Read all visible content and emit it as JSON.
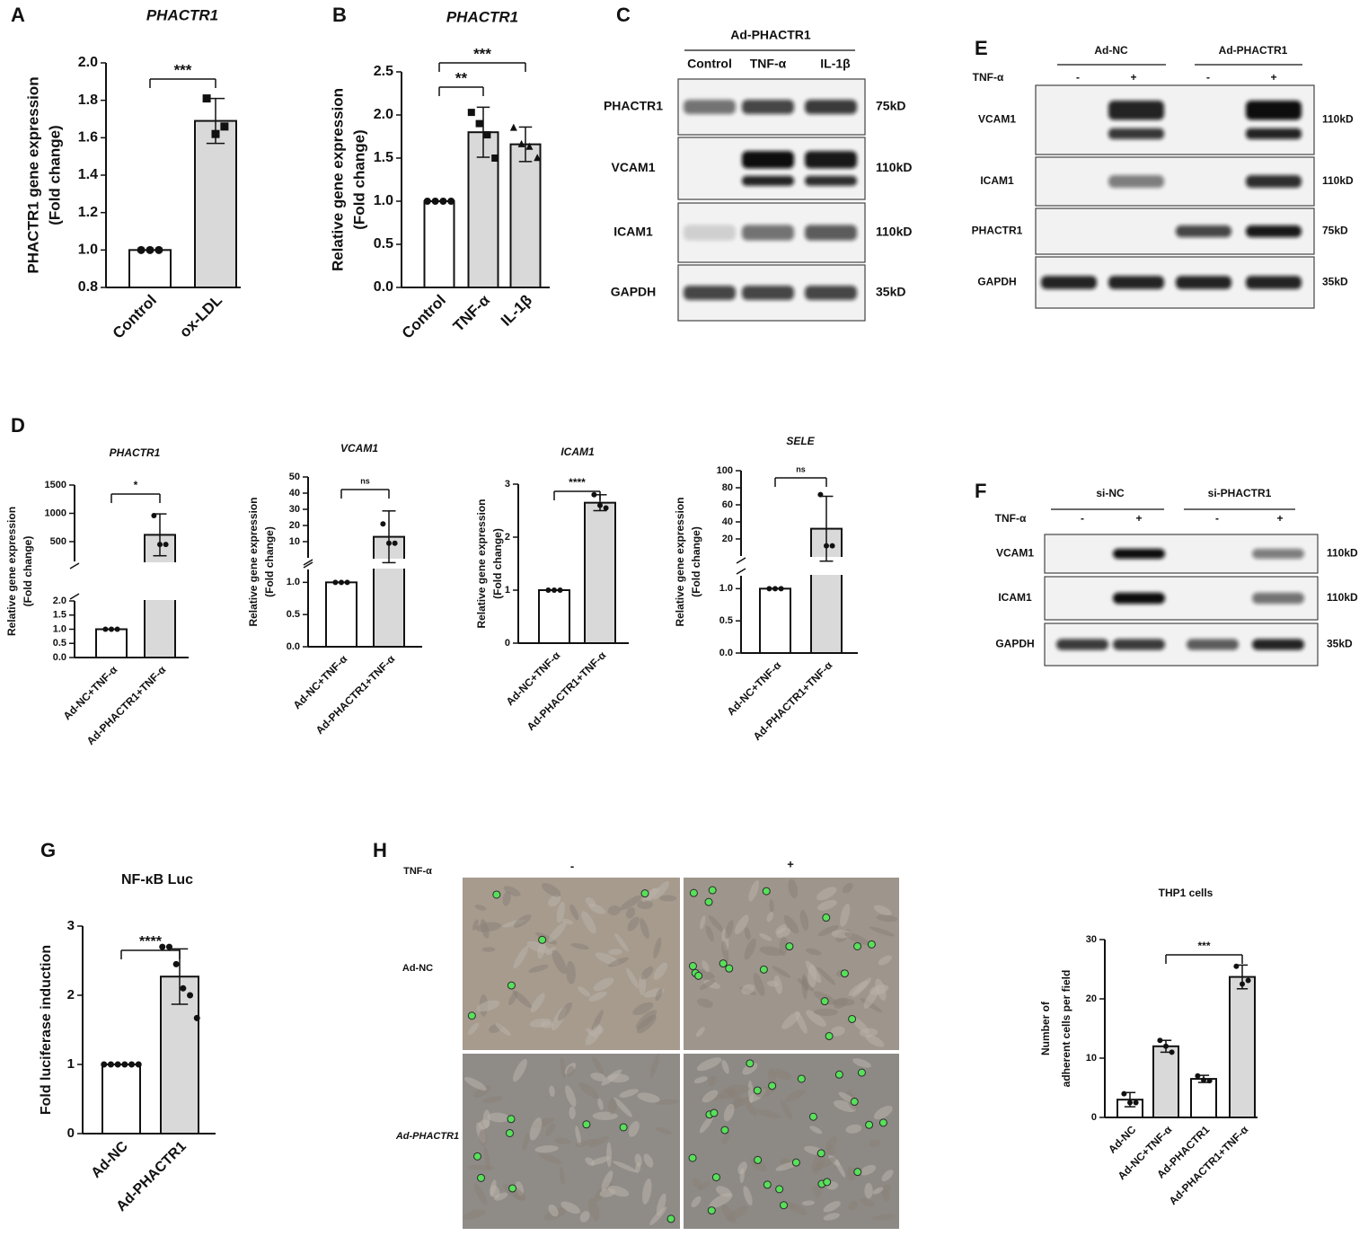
{
  "chart_data": [
    {
      "type": "bar",
      "panel": "A",
      "title": "PHACTR1",
      "title_italic": true,
      "ylabel": [
        "PHACTR1 gene expression",
        "(Fold change)"
      ],
      "categories": [
        "Control",
        "ox-LDL"
      ],
      "values": [
        1.0,
        1.69
      ],
      "errors": [
        0,
        0.12
      ],
      "points": [
        [
          1,
          1,
          1
        ],
        [
          1.81,
          1.62,
          1.66
        ]
      ],
      "markers": [
        "circle",
        "square"
      ],
      "colors": [
        "#ffffff",
        "#d9d9d9"
      ],
      "ylim": [
        0.8,
        2.0
      ],
      "yticks": [
        0.8,
        {
          "value": 1,
          "label": "1.0"
        },
        1.2,
        1.4,
        1.6,
        1.8,
        {
          "value": 2,
          "label": "2.0"
        }
      ],
      "significance": [
        {
          "label": "***",
          "groups": [
            "Control",
            "ox-LDL"
          ]
        }
      ]
    },
    {
      "type": "bar",
      "panel": "B",
      "title": "PHACTR1",
      "title_italic": true,
      "ylabel": [
        "Relative gene expression",
        "(Fold change)"
      ],
      "categories": [
        "Control",
        "TNF-α",
        "IL-1β"
      ],
      "values": [
        1.0,
        1.8,
        1.66
      ],
      "errors": [
        0,
        0.29,
        0.2
      ],
      "points": [
        [
          1,
          1,
          1,
          1
        ],
        [
          2.03,
          1.9,
          1.77,
          1.5
        ],
        [
          1.85,
          1.66,
          1.63,
          1.5
        ]
      ],
      "markers": [
        "circle",
        "square",
        "triangle"
      ],
      "colors": [
        "#ffffff",
        "#d9d9d9",
        "#d9d9d9"
      ],
      "ylim": [
        0,
        2.5
      ],
      "yticks": [
        {
          "value": 0,
          "label": "0.0"
        },
        0.5,
        {
          "value": 1,
          "label": "1.0"
        },
        1.5,
        {
          "value": 2,
          "label": "2.0"
        },
        2.5
      ],
      "significance": [
        {
          "label": "**",
          "groups": [
            "Control",
            "TNF-α"
          ]
        },
        {
          "label": "***",
          "groups": [
            "Control",
            "IL-1β"
          ]
        }
      ]
    },
    {
      "type": "bar",
      "panel": "D",
      "title": "PHACTR1",
      "title_italic": true,
      "ylabel": [
        "Relative gene expression",
        "(Fold change)"
      ],
      "categories": [
        "Ad-NC+TNF-α",
        "Ad-PHACTR1+TNF-α"
      ],
      "values": [
        1.0,
        620
      ],
      "errors": [
        0,
        370
      ],
      "points": [
        [
          1,
          1,
          1
        ],
        [
          960,
          450,
          450
        ]
      ],
      "colors": [
        "#ffffff",
        "#d9d9d9"
      ],
      "ylim": [
        0,
        1500
      ],
      "ybreak": [
        2,
        150
      ],
      "yticks": [
        {
          "value": 0,
          "label": "0.0"
        },
        0.5,
        {
          "value": 1,
          "label": "1.0"
        },
        1.5,
        {
          "value": 2,
          "label": "2.0"
        },
        500,
        1000,
        1500
      ],
      "significance": [
        {
          "label": "*",
          "groups": [
            "Ad-NC+TNF-α",
            "Ad-PHACTR1+TNF-α"
          ]
        }
      ]
    },
    {
      "type": "bar",
      "title": "VCAM1",
      "title_italic": true,
      "ylabel": [
        "Relative gene expression",
        "(Fold change)"
      ],
      "categories": [
        "Ad-NC+TNF-α",
        "Ad-PHACTR1+TNF-α"
      ],
      "values": [
        1.0,
        13
      ],
      "errors": [
        0,
        16
      ],
      "points": [
        [
          1,
          1,
          1
        ],
        [
          21,
          9,
          9
        ]
      ],
      "colors": [
        "#ffffff",
        "#d9d9d9"
      ],
      "ylim": [
        0,
        50
      ],
      "ybreak": [
        1.2,
        0
      ],
      "yticks": [
        {
          "value": 0,
          "label": "0.0"
        },
        0.5,
        {
          "value": 1,
          "label": "1.0"
        },
        10,
        20,
        30,
        40,
        50
      ],
      "significance": [
        {
          "label": "ns",
          "groups": [
            "Ad-NC+TNF-α",
            "Ad-PHACTR1+TNF-α"
          ]
        }
      ]
    },
    {
      "type": "bar",
      "title": "ICAM1",
      "title_italic": true,
      "ylabel": [
        "Relative gene expression",
        "(Fold change)"
      ],
      "categories": [
        "Ad-NC+TNF-α",
        "Ad-PHACTR1+TNF-α"
      ],
      "values": [
        1.0,
        2.65
      ],
      "errors": [
        0,
        0.15
      ],
      "points": [
        [
          1,
          1,
          1
        ],
        [
          2.8,
          2.6,
          2.55
        ]
      ],
      "colors": [
        "#ffffff",
        "#d9d9d9"
      ],
      "ylim": [
        0,
        3
      ],
      "yticks": [
        0,
        1,
        2,
        3
      ],
      "significance": [
        {
          "label": "****",
          "groups": [
            "Ad-NC+TNF-α",
            "Ad-PHACTR1+TNF-α"
          ]
        }
      ]
    },
    {
      "type": "bar",
      "title": "SELE",
      "title_italic": true,
      "ylabel": [
        "Relative gene expression",
        "(Fold change)"
      ],
      "categories": [
        "Ad-NC+TNF-α",
        "Ad-PHACTR1+TNF-α"
      ],
      "values": [
        1.0,
        32
      ],
      "errors": [
        0,
        38
      ],
      "points": [
        [
          1,
          1,
          1
        ],
        [
          72,
          12,
          12
        ]
      ],
      "colors": [
        "#ffffff",
        "#d9d9d9"
      ],
      "ylim": [
        0,
        100
      ],
      "ybreak": [
        1.2,
        0
      ],
      "yticks": [
        {
          "value": 0,
          "label": "0.0"
        },
        0.5,
        {
          "value": 1,
          "label": "1.0"
        },
        20,
        40,
        60,
        80,
        100
      ],
      "significance": [
        {
          "label": "ns",
          "groups": [
            "Ad-NC+TNF-α",
            "Ad-PHACTR1+TNF-α"
          ]
        }
      ]
    },
    {
      "type": "bar",
      "panel": "G",
      "title": "NF-κB Luc",
      "title_italic": false,
      "ylabel": [
        "Fold luciferase induction"
      ],
      "categories": [
        "Ad-NC",
        "Ad-PHACTR1"
      ],
      "values": [
        1.0,
        2.27
      ],
      "errors": [
        0,
        0.4
      ],
      "points": [
        [
          1,
          1,
          1,
          1,
          1,
          1
        ],
        [
          2.7,
          2.7,
          2.45,
          2.1,
          2.0,
          1.67
        ]
      ],
      "colors": [
        "#ffffff",
        "#d9d9d9"
      ],
      "ylim": [
        0,
        3
      ],
      "yticks": [
        0,
        1,
        2,
        3
      ],
      "significance": [
        {
          "label": "****",
          "groups": [
            "Ad-NC",
            "Ad-PHACTR1"
          ]
        }
      ]
    },
    {
      "type": "bar",
      "title": "THP1 cells",
      "title_italic": false,
      "ylabel": [
        "Number of",
        "adherent cells per field"
      ],
      "categories": [
        "Ad-NC",
        "Ad-NC+TNF-α",
        "Ad-PHACTR1",
        "Ad-PHACTR1+TNF-α"
      ],
      "values": [
        3,
        12,
        6.5,
        23.7
      ],
      "errors": [
        1.2,
        1,
        0.6,
        2
      ],
      "points": [
        [
          4,
          2.5,
          2.5
        ],
        [
          13,
          12,
          11
        ],
        [
          7,
          6.3,
          6.2
        ],
        [
          25.5,
          22.5,
          23.1
        ]
      ],
      "colors": [
        "#ffffff",
        "#d9d9d9",
        "#ffffff",
        "#d9d9d9"
      ],
      "ylim": [
        0,
        30
      ],
      "yticks": [
        0,
        10,
        20,
        30
      ],
      "significance": [
        {
          "label": "***",
          "groups": [
            "Ad-NC+TNF-α",
            "Ad-PHACTR1+TNF-α"
          ]
        }
      ]
    }
  ],
  "blots": [
    {
      "panel": "C",
      "header": "Ad-PHACTR1",
      "columns": [
        "Control",
        "TNF-α",
        "IL-1β"
      ],
      "rows": [
        {
          "name": "PHACTR1",
          "size": "75kD"
        },
        {
          "name": "VCAM1",
          "size": "110kD"
        },
        {
          "name": "ICAM1",
          "size": "110kD"
        },
        {
          "name": "GAPDH",
          "size": "35kD"
        }
      ]
    },
    {
      "panel": "E",
      "groups": [
        "Ad-NC",
        "Ad-PHACTR1"
      ],
      "treatment": "TNF-α",
      "signs": [
        "-",
        "+",
        "-",
        "+"
      ],
      "rows": [
        {
          "name": "VCAM1",
          "size": "110kD"
        },
        {
          "name": "ICAM1",
          "size": "110kD"
        },
        {
          "name": "PHACTR1",
          "size": "75kD"
        },
        {
          "name": "GAPDH",
          "size": "35kD"
        }
      ]
    },
    {
      "panel": "F",
      "groups": [
        "si-NC",
        "si-PHACTR1"
      ],
      "treatment": "TNF-α",
      "signs": [
        "-",
        "+",
        "-",
        "+"
      ],
      "rows": [
        {
          "name": "VCAM1",
          "size": "110kD"
        },
        {
          "name": "ICAM1",
          "size": "110kD"
        },
        {
          "name": "GAPDH",
          "size": "35kD"
        }
      ]
    }
  ],
  "micrographs": {
    "panel": "H",
    "treatment": "TNF-α",
    "columns": [
      "-",
      "+"
    ],
    "rows": [
      "Ad-NC",
      "Ad-PHACTR1"
    ]
  }
}
